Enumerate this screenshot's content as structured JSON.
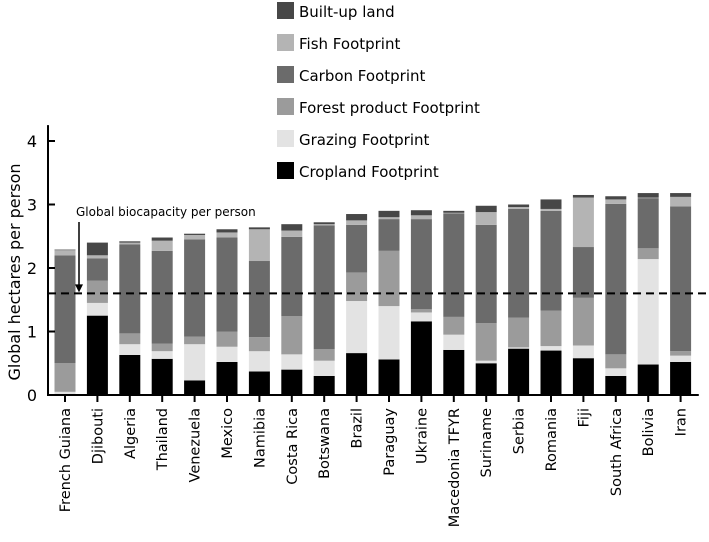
{
  "chart_data": {
    "type": "bar",
    "stacked": true,
    "title": "",
    "xlabel": "",
    "ylabel": "Global hectares per person",
    "ylim": [
      0,
      4.25
    ],
    "yticks": [
      "0",
      "1",
      "2",
      "3",
      "4"
    ],
    "legend_position": "top-right",
    "reference_line": {
      "value": 1.6,
      "label": "Global biocapacity per person"
    },
    "categories": [
      "French Guiana",
      "Djibouti",
      "Algeria",
      "Thailand",
      "Venezuela",
      "Mexico",
      "Namibia",
      "Costa Rica",
      "Botswana",
      "Brazil",
      "Paraguay",
      "Ukraine",
      "Macedonia TFYR",
      "Suriname",
      "Serbia",
      "Romania",
      "Fiji",
      "South Africa",
      "Bolivia",
      "Iran"
    ],
    "series": [
      {
        "name": "Cropland Footprint",
        "color": "#000000",
        "values": [
          0.0,
          1.25,
          0.63,
          0.57,
          0.23,
          0.52,
          0.37,
          0.4,
          0.3,
          0.66,
          0.56,
          1.16,
          0.71,
          0.5,
          0.73,
          0.7,
          0.58,
          0.3,
          0.48,
          0.52
        ]
      },
      {
        "name": "Grazing Footprint",
        "color": "#e3e3e3",
        "values": [
          0.05,
          0.2,
          0.17,
          0.12,
          0.57,
          0.24,
          0.32,
          0.24,
          0.24,
          0.82,
          0.84,
          0.14,
          0.24,
          0.04,
          0.02,
          0.07,
          0.2,
          0.12,
          1.66,
          0.1
        ]
      },
      {
        "name": "Forest product Footprint",
        "color": "#9b9b9b",
        "values": [
          0.45,
          0.35,
          0.17,
          0.12,
          0.12,
          0.24,
          0.22,
          0.6,
          0.18,
          0.45,
          0.87,
          0.05,
          0.28,
          0.59,
          0.47,
          0.56,
          0.75,
          0.22,
          0.17,
          0.07
        ]
      },
      {
        "name": "Carbon Footprint",
        "color": "#6b6b6b",
        "values": [
          1.7,
          0.35,
          1.4,
          1.46,
          1.53,
          1.48,
          1.2,
          1.25,
          1.95,
          0.75,
          0.5,
          1.42,
          1.63,
          1.55,
          1.71,
          1.57,
          0.8,
          2.37,
          0.79,
          2.28
        ]
      },
      {
        "name": "Fish Footprint",
        "color": "#b4b4b4",
        "values": [
          0.08,
          0.05,
          0.03,
          0.16,
          0.07,
          0.08,
          0.5,
          0.1,
          0.02,
          0.07,
          0.03,
          0.06,
          0.01,
          0.2,
          0.03,
          0.03,
          0.78,
          0.07,
          0.01,
          0.15
        ]
      },
      {
        "name": "Built-up land",
        "color": "#474747",
        "values": [
          0.01,
          0.2,
          0.02,
          0.05,
          0.02,
          0.05,
          0.03,
          0.1,
          0.03,
          0.1,
          0.1,
          0.08,
          0.03,
          0.1,
          0.04,
          0.15,
          0.04,
          0.05,
          0.07,
          0.06
        ]
      }
    ],
    "legend_order": [
      "Built-up land",
      "Fish Footprint",
      "Carbon Footprint",
      "Forest product Footprint",
      "Grazing Footprint",
      "Cropland Footprint"
    ]
  }
}
